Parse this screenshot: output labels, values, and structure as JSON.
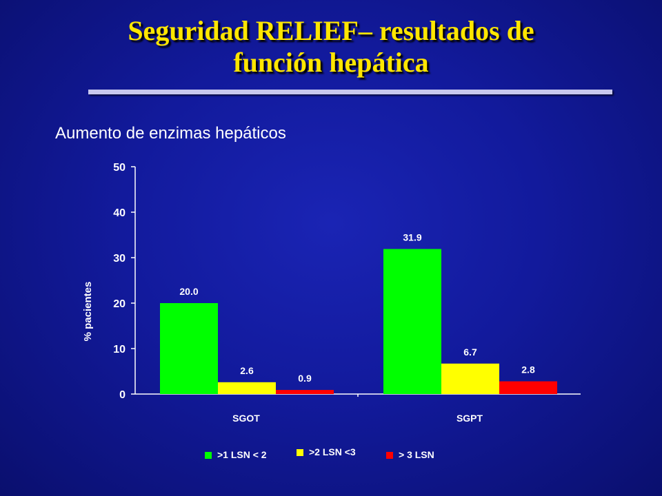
{
  "slide": {
    "title_line1": "Seguridad RELIEF– resultados de",
    "title_line2": "función hepática",
    "subtitle": "Aumento de enzimas hepáticos"
  },
  "colors": {
    "title": "#ffe600",
    "series": [
      "#00ff00",
      "#ffff00",
      "#ff0000"
    ]
  },
  "legend": [
    ">1 LSN < 2",
    ">2 LSN <3",
    "> 3 LSN"
  ],
  "chart_data": {
    "type": "bar",
    "categories": [
      "SGOT",
      "SGPT"
    ],
    "series": [
      {
        "name": ">1 LSN < 2",
        "values": [
          20.0,
          31.9
        ],
        "labels": [
          "20.0",
          "31.9"
        ]
      },
      {
        "name": ">2 LSN <3",
        "values": [
          2.6,
          6.7
        ],
        "labels": [
          "2.6",
          "6.7"
        ]
      },
      {
        "name": "> 3 LSN",
        "values": [
          0.9,
          2.8
        ],
        "labels": [
          "0.9",
          "2.8"
        ]
      }
    ],
    "ylabel": "% pacientes",
    "ylim": [
      0,
      50
    ],
    "yticks": [
      "0",
      "10",
      "20",
      "30",
      "40",
      "50"
    ],
    "grid": false,
    "legend_position": "bottom"
  }
}
